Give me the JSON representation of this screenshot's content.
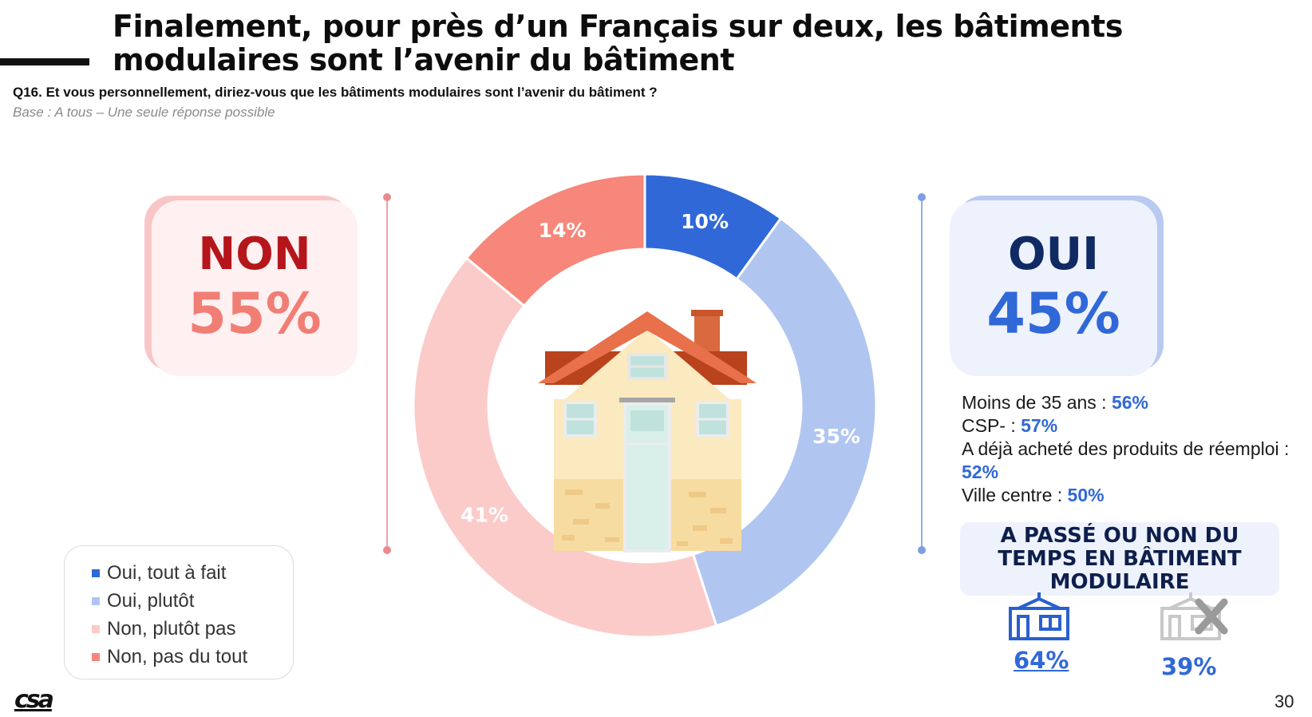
{
  "title": "Finalement, pour près d’un Français sur deux, les bâtiments modulaires sont l’avenir du bâtiment",
  "question": "Q16. Et vous personnellement, diriez-vous que les bâtiments modulaires sont l’avenir du bâtiment ?",
  "base": "Base : A tous – Une seule réponse possible",
  "non_card": {
    "label": "NON",
    "value": "55%"
  },
  "oui_card": {
    "label": "OUI",
    "value": "45%"
  },
  "chart_data": {
    "type": "pie",
    "variant": "donut",
    "start": "top, clockwise",
    "slices": [
      {
        "name": "Oui, tout à fait",
        "value": 10,
        "label": "10%",
        "color": "#3068d8",
        "label_color": "#ffffff"
      },
      {
        "name": "Oui, plutôt",
        "value": 35,
        "label": "35%",
        "color": "#b0c6f0",
        "label_color": "#ffffff"
      },
      {
        "name": "Non, plutôt pas",
        "value": 41,
        "label": "41%",
        "color": "#fbcbca",
        "label_color": "#ffffff"
      },
      {
        "name": "Non, pas du tout",
        "value": 14,
        "label": "14%",
        "color": "#f7867b",
        "label_color": "#ffffff"
      }
    ],
    "legend_position": "bottom-left",
    "center_icon": "house-icon"
  },
  "stats": [
    {
      "label": "Moins de 35 ans : ",
      "value": "56%"
    },
    {
      "label": "CSP- : ",
      "value": "57%"
    },
    {
      "label": "A déjà acheté des produits de réemploi : ",
      "value": "52%"
    },
    {
      "label": "Ville centre : ",
      "value": "50%"
    }
  ],
  "temps": {
    "title": "A PASSÉ OU NON DU TEMPS EN BÂTIMENT MODULAIRE",
    "yes_value": "64%",
    "no_value": "39%",
    "yes_icon": "modular-building-icon",
    "no_icon": "modular-building-crossed-icon"
  },
  "logo": "csa",
  "page_number": "30",
  "colors": {
    "oui_dark": "#3068d8",
    "oui_light": "#b0c6f0",
    "non_light": "#fbcbca",
    "non_dark": "#f7867b",
    "non_title": "#b5161b",
    "oui_title": "#102a63"
  }
}
